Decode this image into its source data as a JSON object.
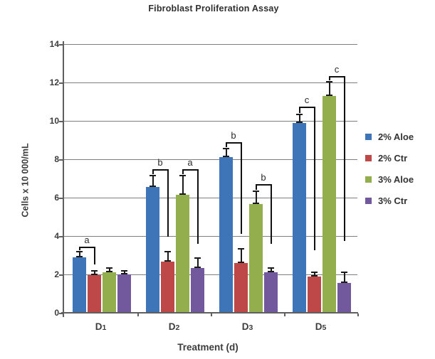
{
  "chart_data": {
    "type": "bar",
    "title": "Fibroblast Proliferation Assay",
    "xlabel": "Treatment (d)",
    "ylabel": "Cells x 10 000/mL",
    "ylim": [
      0,
      14
    ],
    "ytick_step": 2,
    "grid": true,
    "legend_position": "right",
    "categories": [
      "D1",
      "D2",
      "D3",
      "D5"
    ],
    "series": [
      {
        "name": "2% Aloe",
        "color": "#3E74B8",
        "values": [
          2.9,
          6.55,
          8.1,
          9.9
        ],
        "errors": [
          0.3,
          0.6,
          0.45,
          0.45
        ]
      },
      {
        "name": "2% Ctr",
        "color": "#BE4847",
        "values": [
          1.95,
          2.65,
          2.6,
          1.9
        ],
        "errors": [
          0.25,
          0.55,
          0.75,
          0.2
        ]
      },
      {
        "name": "3% Aloe",
        "color": "#93AE4D",
        "values": [
          2.1,
          6.15,
          5.65,
          11.3
        ],
        "errors": [
          0.25,
          1.0,
          0.7,
          0.75
        ]
      },
      {
        "name": "3% Ctr",
        "color": "#72599D",
        "values": [
          2.0,
          2.35,
          2.1,
          1.55
        ],
        "errors": [
          0.2,
          0.5,
          0.25,
          0.55
        ]
      }
    ],
    "significance_brackets": [
      {
        "label": "a",
        "group_index": 0,
        "from_series": 0,
        "to_series": 1,
        "top_value": 3.45,
        "drop_to_value": 2.5
      },
      {
        "label": "b",
        "group_index": 1,
        "from_series": 0,
        "to_series": 1,
        "top_value": 7.5,
        "drop_to_value": 3.95
      },
      {
        "label": "a",
        "group_index": 1,
        "from_series": 2,
        "to_series": 3,
        "top_value": 7.5,
        "drop_to_value": 3.6
      },
      {
        "label": "b",
        "group_index": 2,
        "from_series": 0,
        "to_series": 1,
        "top_value": 8.9,
        "drop_to_value": 4.1
      },
      {
        "label": "b",
        "group_index": 2,
        "from_series": 2,
        "to_series": 3,
        "top_value": 6.7,
        "drop_to_value": 3.6
      },
      {
        "label": "c",
        "group_index": 3,
        "from_series": 0,
        "to_series": 1,
        "top_value": 10.75,
        "drop_to_value": 3.25
      },
      {
        "label": "c",
        "group_index": 3,
        "from_series": 2,
        "to_series": 3,
        "top_value": 12.35,
        "drop_to_value": 3.75
      }
    ],
    "colors": {
      "axis": "#5f5f5f",
      "grid": "#7e7e7e",
      "error_bar": "#1a1a1a",
      "text": "#3c3c3c"
    }
  }
}
